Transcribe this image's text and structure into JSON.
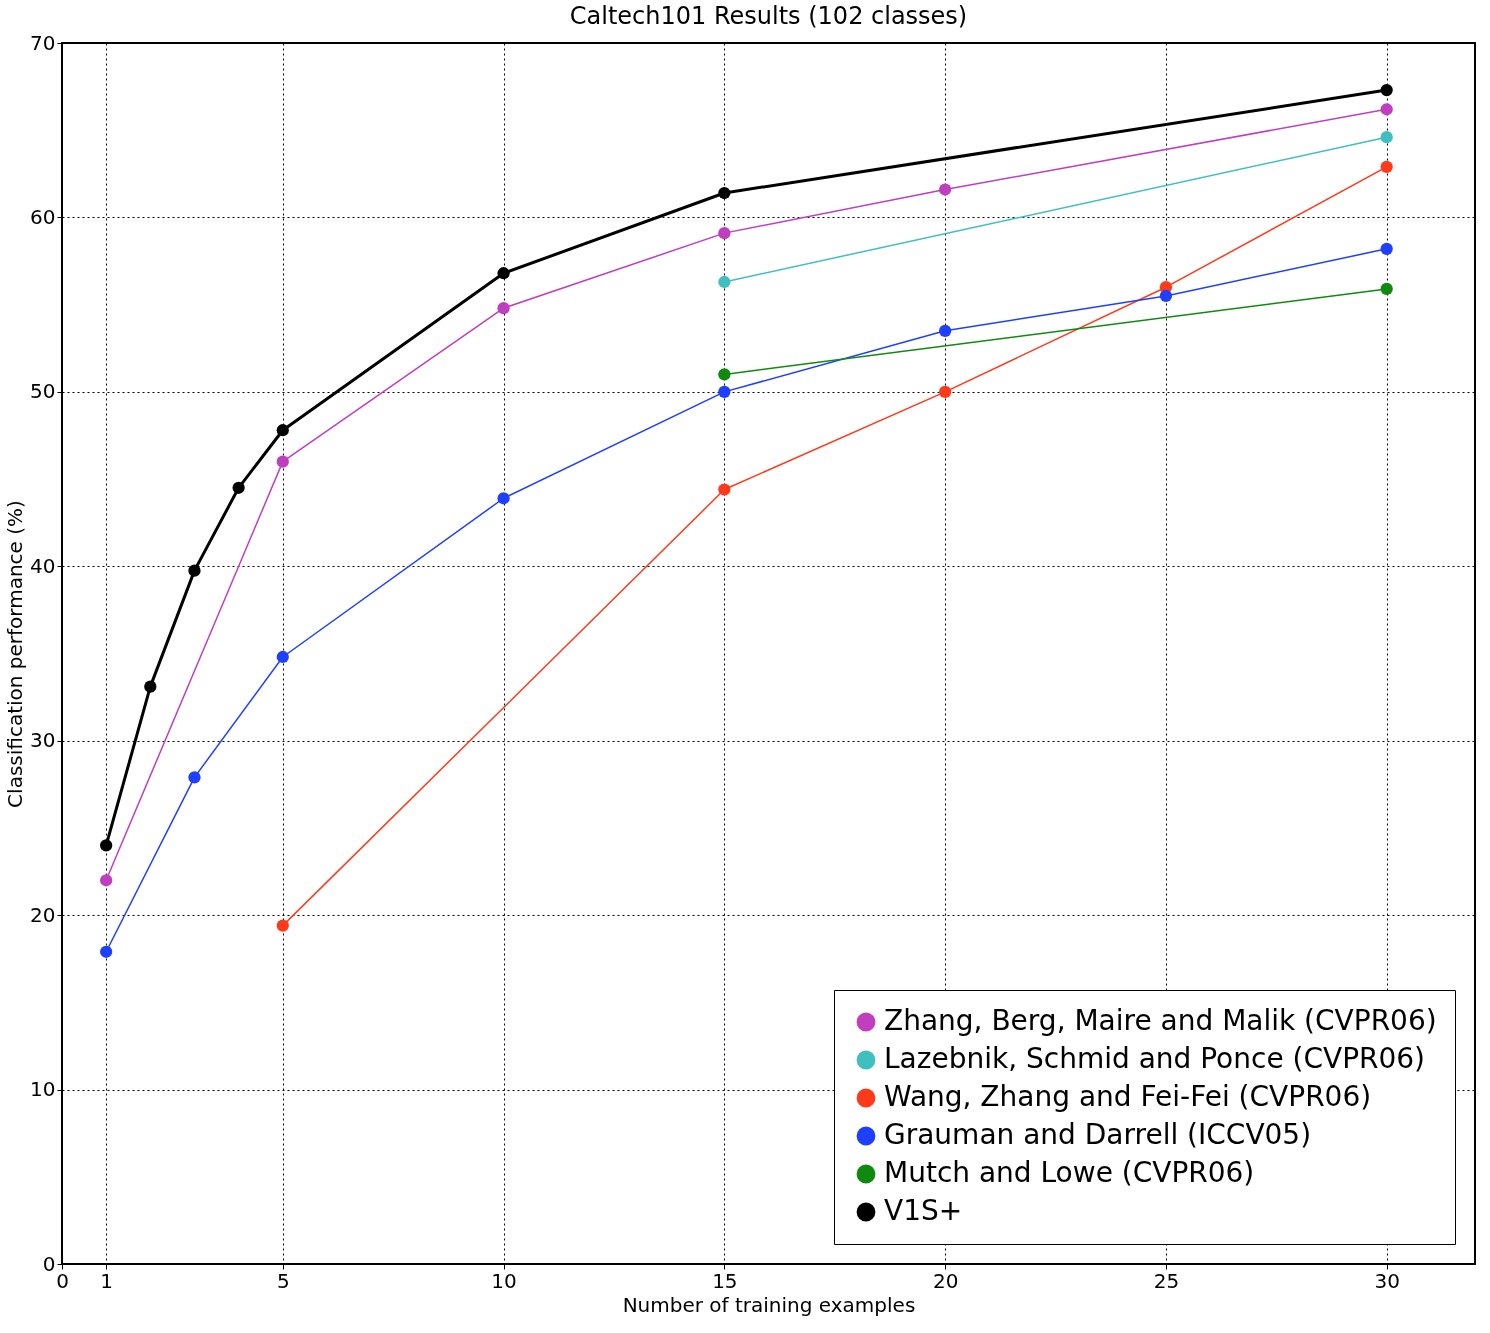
{
  "chart_data": {
    "type": "line",
    "title": "Caltech101 Results (102 classes)",
    "xlabel": "Number of training examples",
    "ylabel": "Classification performance (%)",
    "xlim": [
      0,
      32
    ],
    "xticks": [
      0,
      1,
      5,
      10,
      15,
      20,
      25,
      30
    ],
    "ylim": [
      0,
      70
    ],
    "yticks": [
      0,
      10,
      20,
      30,
      40,
      50,
      60,
      70
    ],
    "grid": true,
    "legend": "bottom right",
    "marker": "circle",
    "line_style": "solid",
    "series": [
      {
        "name": "Zhang, Berg, Maire and Malik (CVPR06)",
        "color": "#bf3fbf",
        "x": [
          1,
          5,
          10,
          15,
          20,
          30
        ],
        "values": [
          22.0,
          46.0,
          54.8,
          59.1,
          61.6,
          66.2
        ]
      },
      {
        "name": "Lazebnik, Schmid and Ponce (CVPR06)",
        "color": "#3fbfbf",
        "x": [
          15,
          30
        ],
        "values": [
          56.3,
          64.6
        ]
      },
      {
        "name": "Wang, Zhang and Fei-Fei (CVPR06)",
        "color": "#ff3a1a",
        "x": [
          5,
          15,
          20,
          25,
          30
        ],
        "values": [
          19.4,
          44.4,
          50.0,
          56.0,
          62.9
        ]
      },
      {
        "name": "Grauman and Darrell (ICCV05)",
        "color": "#1f3fff",
        "x": [
          1,
          3,
          5,
          10,
          15,
          20,
          25,
          30
        ],
        "values": [
          17.9,
          27.9,
          34.8,
          43.9,
          50.0,
          53.5,
          55.5,
          58.2
        ]
      },
      {
        "name": "Mutch and Lowe (CVPR06)",
        "color": "#0f8a0f",
        "x": [
          15,
          30
        ],
        "values": [
          51.0,
          55.9
        ]
      },
      {
        "name": "V1S+",
        "color": "#000000",
        "x": [
          1,
          2,
          3,
          4,
          5,
          10,
          15,
          30
        ],
        "values": [
          24.0,
          33.1,
          39.75,
          44.5,
          47.8,
          56.8,
          61.4,
          67.3
        ]
      }
    ]
  }
}
